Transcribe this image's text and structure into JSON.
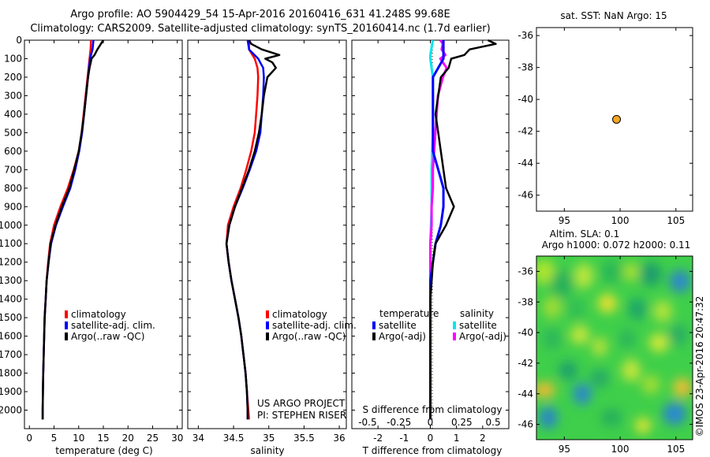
{
  "titles": {
    "line1": "Argo profile: AO 5904429_54 15-Apr-2016 20160416_631 41.248S 99.68E",
    "line2": "Climatology: CARS2009. Satellite-adjusted climatology: synTS_20160414.nc (1.7d earlier)"
  },
  "sst_title": "sat. SST: NaN Argo: 15",
  "sla_title_1": "Altim. SLA: 0.1",
  "sla_title_2": "Argo h1000: 0.072 h2000: 0.11",
  "credit": "US ARGO PROJECT",
  "pi": "PI: STEPHEN RISER",
  "stamp": "©IMOS 23-Apr-2016 20:47:32",
  "colors": {
    "climatology": "#ff0000",
    "satellite": "#0000ff",
    "argo": "#000000",
    "salinity_satellite": "#00e5ee",
    "salinity_argo": "#ff00ff",
    "marker": "#f5a623"
  },
  "chart_data": [
    {
      "type": "line",
      "xlabel": "temperature (deg C)",
      "ylabel": "",
      "xlim": [
        -1,
        31
      ],
      "ylim": [
        2100,
        0
      ],
      "xticks": [
        "0",
        "5",
        "10",
        "15",
        "20",
        "25",
        "30"
      ],
      "yticks": [
        "0",
        "100",
        "200",
        "300",
        "400",
        "500",
        "600",
        "700",
        "800",
        "900",
        "1000",
        "1100",
        "1200",
        "1300",
        "1400",
        "1500",
        "1600",
        "1700",
        "1800",
        "1900",
        "2000"
      ],
      "legend": [
        "climatology",
        "satellite-adj. clim.",
        "Argo(..raw -QC)"
      ],
      "series": [
        {
          "name": "climatology",
          "depth": [
            0,
            50,
            100,
            200,
            300,
            400,
            500,
            600,
            700,
            800,
            900,
            1000,
            1100,
            1200,
            1300,
            1400,
            1500,
            1600,
            1700,
            1800,
            1900,
            2000,
            2050
          ],
          "values": [
            12.5,
            12.4,
            12.2,
            11.8,
            11.4,
            11,
            10.6,
            10,
            9,
            7.8,
            6.3,
            5,
            4.2,
            3.8,
            3.5,
            3.3,
            3.1,
            3,
            2.9,
            2.8,
            2.75,
            2.7,
            2.7
          ]
        },
        {
          "name": "satellite-adj. clim.",
          "depth": [
            0,
            50,
            100,
            200,
            300,
            400,
            500,
            600,
            700,
            800,
            900,
            1000,
            1100,
            1200,
            1300,
            1400,
            1500,
            1600,
            1700,
            1800,
            1900,
            2000,
            2050
          ],
          "values": [
            13,
            12.8,
            12.3,
            11.9,
            11.5,
            11.1,
            10.7,
            10.1,
            9.3,
            8.3,
            6.8,
            5.4,
            4.4,
            3.9,
            3.5,
            3.3,
            3.1,
            3,
            2.9,
            2.8,
            2.75,
            2.7,
            2.7
          ]
        },
        {
          "name": "Argo(..raw -QC)",
          "depth": [
            0,
            20,
            50,
            80,
            100,
            150,
            200,
            300,
            400,
            500,
            600,
            700,
            800,
            900,
            1000,
            1100,
            1200,
            1300,
            1400,
            1500,
            1600,
            1700,
            1800,
            1900,
            2000,
            2050
          ],
          "values": [
            15,
            14.5,
            13.8,
            13.2,
            12.6,
            12.2,
            11.9,
            11.5,
            11.1,
            10.6,
            10,
            9.1,
            8.1,
            6.6,
            5.3,
            4.3,
            3.9,
            3.5,
            3.3,
            3.1,
            3,
            2.9,
            2.8,
            2.75,
            2.7,
            2.7
          ]
        }
      ]
    },
    {
      "type": "line",
      "xlabel": "salinity",
      "ylabel": "",
      "xlim": [
        33.85,
        36.1
      ],
      "ylim": [
        2100,
        0
      ],
      "xticks": [
        "34",
        "34.5",
        "35",
        "35.5",
        "36"
      ],
      "legend": [
        "climatology",
        "satellite-adj. clim.",
        "Argo(..raw -QC)"
      ],
      "series": [
        {
          "name": "climatology",
          "depth": [
            0,
            50,
            100,
            150,
            200,
            300,
            400,
            500,
            600,
            700,
            800,
            900,
            1000,
            1100,
            1200,
            1300,
            1400,
            1500,
            1600,
            1700,
            1800,
            1900,
            2000,
            2050
          ],
          "values": [
            34.72,
            34.72,
            34.8,
            34.84,
            34.85,
            34.84,
            34.82,
            34.8,
            34.75,
            34.68,
            34.6,
            34.5,
            34.42,
            34.4,
            34.43,
            34.47,
            34.52,
            34.57,
            34.61,
            34.64,
            34.67,
            34.69,
            34.71,
            34.72
          ]
        },
        {
          "name": "satellite-adj. clim.",
          "depth": [
            0,
            50,
            100,
            150,
            200,
            300,
            400,
            500,
            600,
            700,
            800,
            900,
            1000,
            1100,
            1200,
            1300,
            1400,
            1500,
            1600,
            1700,
            1800,
            1900,
            2000,
            2050
          ],
          "values": [
            34.7,
            34.72,
            34.85,
            34.92,
            34.93,
            34.92,
            34.9,
            34.88,
            34.82,
            34.73,
            34.63,
            34.52,
            34.44,
            34.4,
            34.43,
            34.47,
            34.52,
            34.57,
            34.61,
            34.64,
            34.67,
            34.69,
            34.7,
            34.7
          ]
        },
        {
          "name": "Argo(..raw -QC)",
          "depth": [
            0,
            20,
            50,
            80,
            100,
            120,
            150,
            200,
            300,
            400,
            500,
            600,
            700,
            800,
            900,
            1000,
            1100,
            1200,
            1300,
            1400,
            1500,
            1600,
            1700,
            1800,
            1900,
            2000,
            2050
          ],
          "values": [
            34.72,
            34.75,
            34.9,
            35.15,
            34.95,
            35.05,
            35.1,
            34.98,
            34.93,
            34.9,
            34.86,
            34.8,
            34.72,
            34.62,
            34.52,
            34.44,
            34.4,
            34.43,
            34.47,
            34.52,
            34.57,
            34.61,
            34.64,
            34.67,
            34.69,
            34.7,
            34.7
          ]
        }
      ]
    },
    {
      "type": "line",
      "xlabel": "T difference from climatology",
      "xlabel_top": "S difference from climatology",
      "xlim": [
        -3,
        3
      ],
      "ylim": [
        2100,
        0
      ],
      "xticks": [
        "-2",
        "-1",
        "0",
        "1",
        "2"
      ],
      "xticks_top": [
        "-0.5",
        "-0.25",
        "0",
        "0.25",
        "0.5"
      ],
      "legend": {
        "temperature_header": "temperature",
        "salinity_header": "salinity",
        "items": [
          "satellite",
          "Argo(-adj)",
          "satellite",
          "Argo(-adj)"
        ]
      },
      "series": [
        {
          "name": "satellite",
          "depth": [
            0,
            100,
            200,
            300,
            400,
            500,
            600,
            700,
            800,
            900,
            1000,
            1100,
            1200,
            1300,
            1400,
            1500,
            1600,
            1700,
            1800,
            1900,
            2000,
            2050
          ],
          "values": [
            0.5,
            0.5,
            0.1,
            0.1,
            0.1,
            0.1,
            0.1,
            0.3,
            0.5,
            0.5,
            0.4,
            0.2,
            0.1,
            0,
            0,
            0,
            0,
            0,
            0,
            0,
            0,
            0
          ]
        },
        {
          "name": "Argo(-adj)",
          "depth": [
            0,
            20,
            50,
            80,
            100,
            150,
            200,
            300,
            400,
            500,
            600,
            700,
            800,
            900,
            1000,
            1100,
            1200,
            1300,
            1400,
            1500,
            1600,
            1700,
            1800,
            1900,
            2000,
            2050
          ],
          "values": [
            2.2,
            2.5,
            1.5,
            1.3,
            0.8,
            0.7,
            0.4,
            0.3,
            0.2,
            0.3,
            0.4,
            0.5,
            0.6,
            0.9,
            0.6,
            0.2,
            0.1,
            0.05,
            0,
            0,
            0,
            0,
            0,
            0,
            0,
            0
          ]
        },
        {
          "name": "satellite",
          "depth": [
            0,
            80,
            100,
            150,
            200,
            300,
            500,
            700,
            900,
            1100,
            1300,
            1500,
            1700,
            1900,
            2050
          ],
          "values": [
            0.02,
            0,
            0,
            0.01,
            0.02,
            0.02,
            0.02,
            0.01,
            0.01,
            0,
            0,
            0,
            0,
            0,
            0
          ]
        },
        {
          "name": "Argo(-adj)",
          "depth": [
            0,
            20,
            50,
            80,
            100,
            150,
            200,
            300,
            400,
            500,
            600,
            700,
            800,
            900,
            1000,
            1100,
            1200,
            1300,
            1400,
            1500,
            1600,
            1700,
            1800,
            1900,
            2000,
            2050
          ],
          "values": [
            0.08,
            0.1,
            0.09,
            0.12,
            0.08,
            0.13,
            0.1,
            0.06,
            0.05,
            0.04,
            0.03,
            0.02,
            0.02,
            0.01,
            0.01,
            0,
            0,
            0,
            0,
            0,
            0,
            0,
            0,
            0,
            0,
            0
          ]
        }
      ]
    },
    {
      "type": "scatter",
      "xlim": [
        92.5,
        106.5
      ],
      "ylim": [
        -47,
        -35.5
      ],
      "xticks": [
        "95",
        "100",
        "105"
      ],
      "yticks": [
        "-36",
        "-38",
        "-40",
        "-42",
        "-44",
        "-46"
      ],
      "points": [
        {
          "x": 99.68,
          "y": -41.248
        }
      ]
    },
    {
      "type": "heatmap",
      "xlim": [
        92.5,
        106.5
      ],
      "ylim": [
        -47,
        -35
      ],
      "xticks": [
        "95",
        "100",
        "105"
      ],
      "yticks": [
        "-36",
        "-38",
        "-40",
        "-42",
        "-44",
        "-46"
      ]
    }
  ]
}
